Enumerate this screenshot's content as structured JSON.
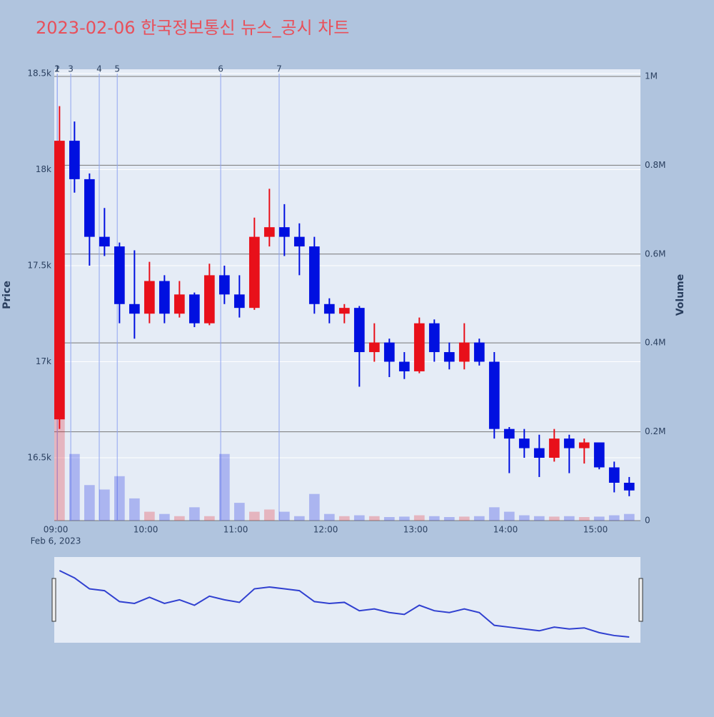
{
  "chart_data": {
    "type": "candlestick",
    "title": "2023-02-06 한국정보통신 뉴스_공시 차트",
    "x": [
      "09:00",
      "09:10",
      "09:20",
      "09:30",
      "09:40",
      "09:50",
      "10:00",
      "10:10",
      "10:20",
      "10:30",
      "10:40",
      "10:50",
      "11:00",
      "11:10",
      "11:20",
      "11:30",
      "11:40",
      "11:50",
      "12:00",
      "12:10",
      "12:20",
      "12:30",
      "12:40",
      "12:50",
      "13:00",
      "13:10",
      "13:20",
      "13:30",
      "13:40",
      "13:50",
      "14:00",
      "14:10",
      "14:20",
      "14:30",
      "14:40",
      "14:50",
      "15:00",
      "15:10",
      "15:20"
    ],
    "open": [
      16700,
      18150,
      17950,
      17650,
      17600,
      17300,
      17250,
      17420,
      17250,
      17350,
      17200,
      17450,
      17350,
      17280,
      17650,
      17700,
      17650,
      17600,
      17300,
      17250,
      17280,
      17050,
      17100,
      17000,
      16950,
      17200,
      17050,
      17000,
      17100,
      17000,
      16650,
      16600,
      16550,
      16500,
      16600,
      16550,
      16580,
      16450,
      16370
    ],
    "high": [
      18330,
      18250,
      17980,
      17800,
      17620,
      17580,
      17520,
      17450,
      17420,
      17360,
      17510,
      17500,
      17450,
      17750,
      17900,
      17820,
      17720,
      17650,
      17330,
      17300,
      17290,
      17200,
      17120,
      17050,
      17230,
      17220,
      17100,
      17200,
      17120,
      17050,
      16660,
      16650,
      16620,
      16650,
      16620,
      16600,
      16580,
      16480,
      16400
    ],
    "low": [
      16650,
      17880,
      17500,
      17550,
      17200,
      17120,
      17200,
      17200,
      17230,
      17180,
      17190,
      17300,
      17230,
      17270,
      17600,
      17550,
      17450,
      17250,
      17200,
      17200,
      16870,
      17000,
      16920,
      16910,
      16940,
      17000,
      16960,
      16960,
      16980,
      16600,
      16420,
      16500,
      16400,
      16480,
      16420,
      16470,
      16440,
      16320,
      16300
    ],
    "close": [
      18150,
      17950,
      17650,
      17600,
      17300,
      17250,
      17420,
      17250,
      17350,
      17200,
      17450,
      17350,
      17280,
      17650,
      17700,
      17650,
      17600,
      17300,
      17250,
      17280,
      17050,
      17100,
      17000,
      16950,
      17200,
      17050,
      17000,
      17100,
      17000,
      16650,
      16600,
      16550,
      16500,
      16600,
      16550,
      16580,
      16450,
      16370,
      16330
    ],
    "volume": [
      600000,
      150000,
      80000,
      70000,
      100000,
      50000,
      20000,
      15000,
      10000,
      30000,
      10000,
      150000,
      40000,
      20000,
      25000,
      20000,
      10000,
      60000,
      15000,
      10000,
      12000,
      10000,
      8000,
      9000,
      12000,
      10000,
      8000,
      9000,
      10000,
      30000,
      20000,
      12000,
      10000,
      9000,
      10000,
      8000,
      9000,
      12000,
      15000
    ],
    "up_color": "#e8101a",
    "down_color": "#0010e0",
    "xlim": [
      "08:59",
      "15:30"
    ],
    "xticks": [
      "09:00",
      "10:00",
      "11:00",
      "12:00",
      "13:00",
      "14:00",
      "15:00"
    ],
    "x_date_label": "Feb 6, 2023",
    "ylim": [
      16173,
      18522
    ],
    "yticks": [
      {
        "value": 16500,
        "label": "16.5k"
      },
      {
        "value": 17000,
        "label": "17k"
      },
      {
        "value": 17500,
        "label": "17.5k"
      },
      {
        "value": 18000,
        "label": "18k"
      },
      {
        "value": 18500,
        "label": "18.5k"
      }
    ],
    "y2lim": [
      0,
      1016000
    ],
    "y2ticks": [
      0,
      {
        "value": 200000,
        "label": "0.2M"
      },
      {
        "value": 400000,
        "label": "0.4M"
      },
      {
        "value": 600000,
        "label": "0.6M"
      },
      {
        "value": 800000,
        "label": "0.8M"
      },
      {
        "value": 1000000,
        "label": "1M"
      }
    ],
    "ylabel": "Price",
    "y2label": "Volume",
    "events": [
      {
        "label": "1",
        "x": "09:01"
      },
      {
        "label": "2",
        "x": "09:01"
      },
      {
        "label": "3",
        "x": "09:10"
      },
      {
        "label": "4",
        "x": "09:29"
      },
      {
        "label": "5",
        "x": "09:41"
      },
      {
        "label": "6",
        "x": "10:50"
      },
      {
        "label": "7",
        "x": "11:29"
      }
    ],
    "range_slider": true
  }
}
